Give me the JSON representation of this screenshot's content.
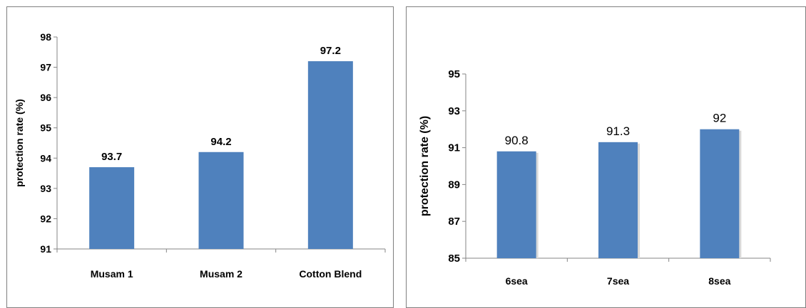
{
  "chart_data": [
    {
      "type": "bar",
      "categories": [
        "Musam 1",
        "Musam 2",
        "Cotton  Blend"
      ],
      "values": [
        93.7,
        94.2,
        97.2
      ],
      "data_labels": [
        "93.7",
        "94.2",
        "97.2"
      ],
      "ylabel": "protection rate (%)",
      "ylim": [
        91,
        98
      ],
      "yticks": [
        "91",
        "92",
        "93",
        "94",
        "95",
        "96",
        "97",
        "98"
      ],
      "grid": false,
      "bar_color": "#4f81bd"
    },
    {
      "type": "bar",
      "categories": [
        "6sea",
        "7sea",
        "8sea"
      ],
      "values": [
        90.8,
        91.3,
        92
      ],
      "data_labels": [
        "90.8",
        "91.3",
        "92"
      ],
      "ylabel": "protection rate (%)",
      "ylim": [
        85,
        95
      ],
      "yticks": [
        "85",
        "87",
        "89",
        "91",
        "93",
        "95"
      ],
      "grid": false,
      "bar_color": "#4f81bd"
    }
  ]
}
